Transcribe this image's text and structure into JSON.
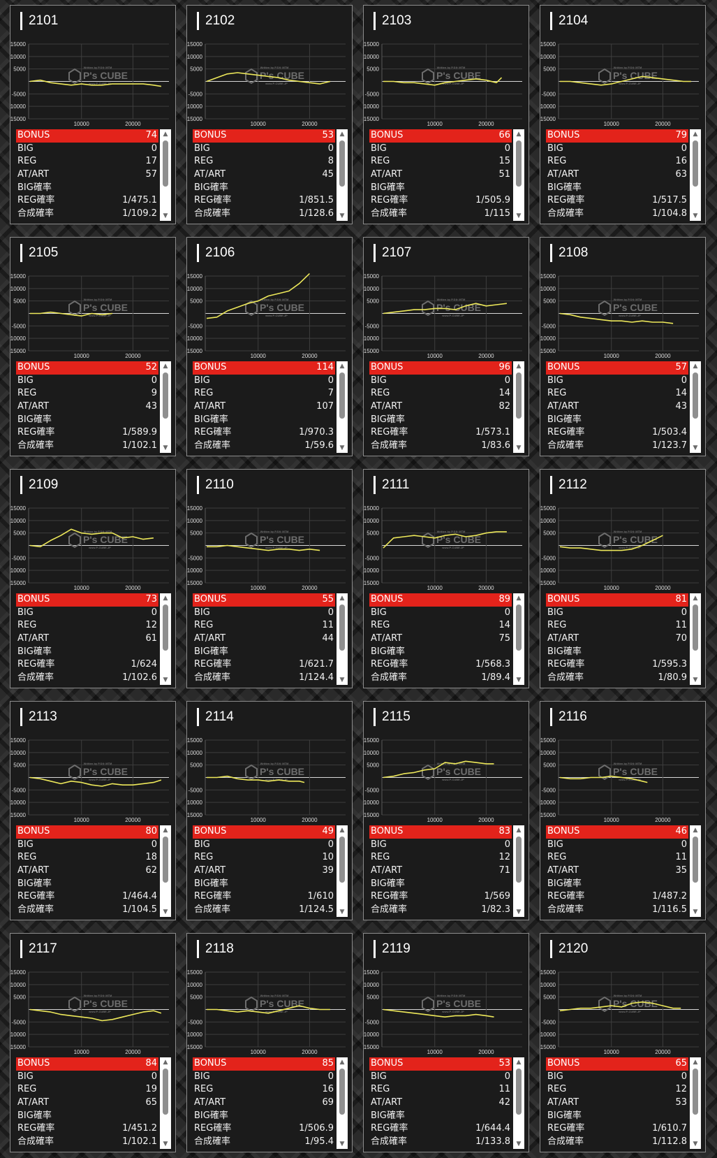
{
  "labels": {
    "bonus": "BONUS",
    "big": "BIG",
    "reg": "REG",
    "atart": "AT/ART",
    "big_prob": "BIG確率",
    "reg_prob": "REG確率",
    "combined_prob": "合成確率"
  },
  "watermark": {
    "brand": "P's CUBE",
    "small_top": "Written by P.Sゃ MTM",
    "small_bottom": "www.P-CUBE.JP"
  },
  "colors": {
    "bonus_bar": "#e3231b",
    "graph_line": "#ede85a",
    "panel_bg": "#1b1b1b"
  },
  "scroll_icons": {
    "up": "triangle-up-icon",
    "down": "triangle-down-icon"
  },
  "machines": [
    {
      "id": "2101",
      "bonus": "74",
      "big": "0",
      "reg": "17",
      "atart": "57",
      "big_prob": "",
      "reg_prob": "1/475.1",
      "combined_prob": "1/109.2"
    },
    {
      "id": "2102",
      "bonus": "53",
      "big": "0",
      "reg": "8",
      "atart": "45",
      "big_prob": "",
      "reg_prob": "1/851.5",
      "combined_prob": "1/128.6"
    },
    {
      "id": "2103",
      "bonus": "66",
      "big": "0",
      "reg": "15",
      "atart": "51",
      "big_prob": "",
      "reg_prob": "1/505.9",
      "combined_prob": "1/115"
    },
    {
      "id": "2104",
      "bonus": "79",
      "big": "0",
      "reg": "16",
      "atart": "63",
      "big_prob": "",
      "reg_prob": "1/517.5",
      "combined_prob": "1/104.8"
    },
    {
      "id": "2105",
      "bonus": "52",
      "big": "0",
      "reg": "9",
      "atart": "43",
      "big_prob": "",
      "reg_prob": "1/589.9",
      "combined_prob": "1/102.1"
    },
    {
      "id": "2106",
      "bonus": "114",
      "big": "0",
      "reg": "7",
      "atart": "107",
      "big_prob": "",
      "reg_prob": "1/970.3",
      "combined_prob": "1/59.6"
    },
    {
      "id": "2107",
      "bonus": "96",
      "big": "0",
      "reg": "14",
      "atart": "82",
      "big_prob": "",
      "reg_prob": "1/573.1",
      "combined_prob": "1/83.6"
    },
    {
      "id": "2108",
      "bonus": "57",
      "big": "0",
      "reg": "14",
      "atart": "43",
      "big_prob": "",
      "reg_prob": "1/503.4",
      "combined_prob": "1/123.7"
    },
    {
      "id": "2109",
      "bonus": "73",
      "big": "0",
      "reg": "12",
      "atart": "61",
      "big_prob": "",
      "reg_prob": "1/624",
      "combined_prob": "1/102.6"
    },
    {
      "id": "2110",
      "bonus": "55",
      "big": "0",
      "reg": "11",
      "atart": "44",
      "big_prob": "",
      "reg_prob": "1/621.7",
      "combined_prob": "1/124.4"
    },
    {
      "id": "2111",
      "bonus": "89",
      "big": "0",
      "reg": "14",
      "atart": "75",
      "big_prob": "",
      "reg_prob": "1/568.3",
      "combined_prob": "1/89.4"
    },
    {
      "id": "2112",
      "bonus": "81",
      "big": "0",
      "reg": "11",
      "atart": "70",
      "big_prob": "",
      "reg_prob": "1/595.3",
      "combined_prob": "1/80.9"
    },
    {
      "id": "2113",
      "bonus": "80",
      "big": "0",
      "reg": "18",
      "atart": "62",
      "big_prob": "",
      "reg_prob": "1/464.4",
      "combined_prob": "1/104.5"
    },
    {
      "id": "2114",
      "bonus": "49",
      "big": "0",
      "reg": "10",
      "atart": "39",
      "big_prob": "",
      "reg_prob": "1/610",
      "combined_prob": "1/124.5"
    },
    {
      "id": "2115",
      "bonus": "83",
      "big": "0",
      "reg": "12",
      "atart": "71",
      "big_prob": "",
      "reg_prob": "1/569",
      "combined_prob": "1/82.3"
    },
    {
      "id": "2116",
      "bonus": "46",
      "big": "0",
      "reg": "11",
      "atart": "35",
      "big_prob": "",
      "reg_prob": "1/487.2",
      "combined_prob": "1/116.5"
    },
    {
      "id": "2117",
      "bonus": "84",
      "big": "0",
      "reg": "19",
      "atart": "65",
      "big_prob": "",
      "reg_prob": "1/451.2",
      "combined_prob": "1/102.1"
    },
    {
      "id": "2118",
      "bonus": "85",
      "big": "0",
      "reg": "16",
      "atart": "69",
      "big_prob": "",
      "reg_prob": "1/506.9",
      "combined_prob": "1/95.4"
    },
    {
      "id": "2119",
      "bonus": "53",
      "big": "0",
      "reg": "11",
      "atart": "42",
      "big_prob": "",
      "reg_prob": "1/644.4",
      "combined_prob": "1/133.8"
    },
    {
      "id": "2120",
      "bonus": "65",
      "big": "0",
      "reg": "12",
      "atart": "53",
      "big_prob": "",
      "reg_prob": "1/610.7",
      "combined_prob": "1/112.8"
    }
  ],
  "chart_data": {
    "type": "line",
    "y_ticks": [
      "15000",
      "10000",
      "5000",
      "-5000",
      "-10000",
      "-15000"
    ],
    "x_ticks": [
      "10000",
      "20000"
    ],
    "ylim": [
      -15000,
      15000
    ],
    "xlim": [
      0,
      27000
    ],
    "grid": true,
    "series": [
      {
        "x": [
          0,
          2000,
          4000,
          6000,
          8000,
          10000,
          12000,
          14000,
          16000,
          18000,
          20000,
          22000,
          24000,
          25500
        ],
        "values": [
          0,
          500,
          -500,
          -1000,
          -1500,
          -1000,
          -1500,
          -1500,
          -1000,
          -1000,
          -1000,
          -1000,
          -1500,
          -2000
        ]
      },
      {
        "x": [
          0,
          2000,
          4000,
          6000,
          8000,
          10000,
          12000,
          14000,
          16000,
          18000,
          20000,
          22000,
          24000
        ],
        "values": [
          0,
          1500,
          3000,
          3500,
          3000,
          2500,
          2000,
          1500,
          500,
          0,
          -500,
          -1000,
          0
        ]
      },
      {
        "x": [
          0,
          2000,
          4000,
          6000,
          8000,
          10000,
          12000,
          14000,
          16000,
          18000,
          20000,
          22000,
          23000
        ],
        "values": [
          0,
          0,
          -500,
          -500,
          -1000,
          -1500,
          -500,
          0,
          500,
          1000,
          500,
          -500,
          1500
        ]
      },
      {
        "x": [
          0,
          2000,
          4000,
          6000,
          8000,
          10000,
          12000,
          14000,
          16000,
          18000,
          20000,
          22000,
          24000,
          25500
        ],
        "values": [
          0,
          0,
          -500,
          -1000,
          -1500,
          -1000,
          0,
          1000,
          2000,
          1500,
          1000,
          500,
          0,
          0
        ]
      },
      {
        "x": [
          0,
          2000,
          4000,
          6000,
          8000,
          10000,
          12000,
          14000,
          16000
        ],
        "values": [
          0,
          0,
          500,
          0,
          -500,
          -1000,
          0,
          -500,
          0
        ]
      },
      {
        "x": [
          0,
          2000,
          4000,
          6000,
          8000,
          10000,
          12000,
          14000,
          16000,
          18000,
          20000
        ],
        "values": [
          -2000,
          -1500,
          1000,
          2500,
          4000,
          5000,
          7000,
          8000,
          9000,
          12000,
          16000
        ]
      },
      {
        "x": [
          0,
          2000,
          4000,
          6000,
          8000,
          10000,
          12000,
          14000,
          16000,
          18000,
          20000,
          22000,
          24000
        ],
        "values": [
          0,
          500,
          1000,
          1500,
          1500,
          2000,
          2000,
          1500,
          3000,
          4000,
          3000,
          3500,
          4000
        ]
      },
      {
        "x": [
          0,
          2000,
          4000,
          6000,
          8000,
          10000,
          12000,
          14000,
          16000,
          18000,
          20000,
          22000
        ],
        "values": [
          0,
          -500,
          -1500,
          -2000,
          -2500,
          -3000,
          -3000,
          -3500,
          -3000,
          -3500,
          -3500,
          -4000
        ]
      },
      {
        "x": [
          0,
          2000,
          4000,
          6000,
          8000,
          10000,
          12000,
          14000,
          16000,
          18000,
          20000,
          22000,
          24000
        ],
        "values": [
          0,
          -500,
          2000,
          4000,
          6500,
          5000,
          4500,
          5000,
          5000,
          3000,
          3500,
          2500,
          3000
        ]
      },
      {
        "x": [
          0,
          2000,
          4000,
          6000,
          8000,
          10000,
          12000,
          14000,
          16000,
          18000,
          20000,
          22000
        ],
        "values": [
          -500,
          -500,
          0,
          -500,
          -1000,
          -1500,
          -2000,
          -1500,
          -1500,
          -2000,
          -1500,
          -2000
        ]
      },
      {
        "x": [
          0,
          2000,
          4000,
          6000,
          8000,
          10000,
          12000,
          14000,
          16000,
          18000,
          20000,
          22000,
          24000
        ],
        "values": [
          -1000,
          3000,
          3500,
          4000,
          3500,
          3000,
          4000,
          4500,
          3500,
          4000,
          5000,
          5500,
          5500
        ]
      },
      {
        "x": [
          0,
          2000,
          4000,
          6000,
          8000,
          10000,
          12000,
          14000,
          16000,
          18000,
          20000
        ],
        "values": [
          -500,
          -1000,
          -1000,
          -1500,
          -2000,
          -2000,
          -2000,
          -1500,
          0,
          2000,
          4000
        ]
      },
      {
        "x": [
          0,
          2000,
          4000,
          6000,
          8000,
          10000,
          12000,
          14000,
          16000,
          18000,
          20000,
          22000,
          24000,
          25500
        ],
        "values": [
          0,
          -500,
          -1500,
          -2500,
          -1500,
          -2000,
          -3000,
          -3500,
          -2500,
          -3000,
          -3000,
          -2500,
          -2000,
          -1000
        ]
      },
      {
        "x": [
          0,
          2000,
          4000,
          6000,
          8000,
          10000,
          12000,
          14000,
          16000,
          18000,
          19000
        ],
        "values": [
          0,
          0,
          500,
          -500,
          -1000,
          -1000,
          -1500,
          -1000,
          -1500,
          -1500,
          -2000
        ]
      },
      {
        "x": [
          0,
          2000,
          4000,
          6000,
          8000,
          10000,
          12000,
          14000,
          16000,
          18000,
          20000,
          21500
        ],
        "values": [
          0,
          500,
          1500,
          2000,
          3000,
          3500,
          6000,
          5500,
          6500,
          6000,
          5500,
          5500
        ]
      },
      {
        "x": [
          0,
          2000,
          4000,
          6000,
          8000,
          10000,
          12000,
          14000,
          16000,
          17000
        ],
        "values": [
          0,
          -500,
          -500,
          0,
          0,
          500,
          0,
          -500,
          -1500,
          -2000
        ]
      },
      {
        "x": [
          0,
          2000,
          4000,
          6000,
          8000,
          10000,
          12000,
          14000,
          16000,
          18000,
          20000,
          22000,
          24000,
          25500
        ],
        "values": [
          0,
          -500,
          -1000,
          -2000,
          -2500,
          -3000,
          -3500,
          -4500,
          -4000,
          -3000,
          -2000,
          -1000,
          -500,
          -1500
        ]
      },
      {
        "x": [
          0,
          2000,
          4000,
          6000,
          8000,
          10000,
          12000,
          14000,
          16000,
          18000,
          20000,
          22000,
          24000
        ],
        "values": [
          0,
          0,
          -500,
          -1000,
          -500,
          -1000,
          -1500,
          -500,
          500,
          1500,
          500,
          0,
          0
        ]
      },
      {
        "x": [
          0,
          2000,
          4000,
          6000,
          8000,
          10000,
          12000,
          14000,
          16000,
          18000,
          20000,
          21500
        ],
        "values": [
          0,
          -500,
          -1000,
          -1500,
          -2000,
          -2500,
          -3000,
          -2500,
          -2500,
          -2000,
          -2500,
          -3000
        ]
      },
      {
        "x": [
          0,
          2000,
          4000,
          6000,
          8000,
          10000,
          12000,
          14000,
          16000,
          18000,
          20000,
          22000,
          23500
        ],
        "values": [
          -500,
          0,
          500,
          500,
          1000,
          1500,
          1000,
          2500,
          3000,
          2500,
          1500,
          500,
          500
        ]
      }
    ]
  }
}
